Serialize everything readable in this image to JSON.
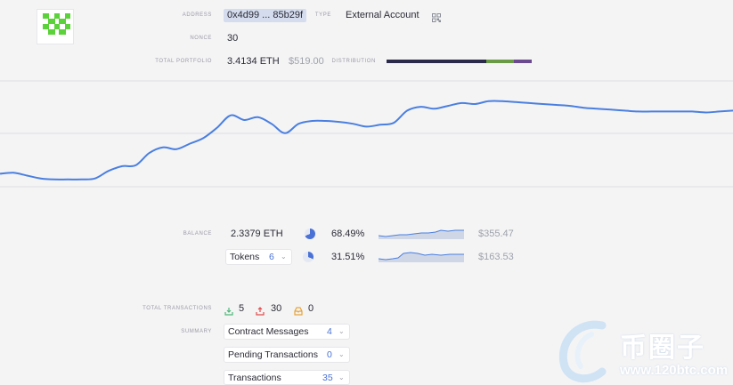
{
  "account": {
    "address_label": "ADDRESS",
    "address": "0x4d99 ... 85b29f",
    "type_label": "TYPE",
    "type": "External Account",
    "nonce_label": "NONCE",
    "nonce": "30",
    "portfolio_label": "TOTAL PORTFOLIO",
    "portfolio_eth": "3.4134 ETH",
    "portfolio_usd": "$519.00",
    "distribution_label": "DISTRIBUTION",
    "distribution": [
      {
        "share": 0.685,
        "color": "#2b2a4b"
      },
      {
        "share": 0.195,
        "color": "#6a9a45"
      },
      {
        "share": 0.12,
        "color": "#6b4a8f"
      }
    ]
  },
  "chart_data": {
    "type": "line",
    "x": [
      0,
      1,
      2,
      3,
      4,
      5,
      6,
      7,
      8,
      9,
      10,
      11,
      12,
      13,
      14,
      15,
      16,
      17,
      18,
      19,
      20,
      21,
      22,
      23,
      24,
      25,
      26,
      27,
      28,
      29,
      30,
      31,
      32,
      33,
      34,
      35,
      36,
      37,
      38,
      39,
      40,
      41,
      42,
      43,
      44,
      45,
      46,
      47,
      48,
      49,
      50,
      51,
      52,
      53,
      54
    ],
    "values": [
      10,
      11,
      8,
      5,
      4,
      4,
      4,
      5,
      13,
      18,
      19,
      32,
      38,
      36,
      42,
      48,
      59,
      72,
      67,
      70,
      63,
      53,
      63,
      66,
      66,
      65,
      63,
      60,
      62,
      64,
      77,
      81,
      79,
      82,
      85,
      84,
      87,
      87,
      86,
      85,
      84,
      83,
      82,
      80,
      79,
      78,
      77,
      76,
      76,
      76,
      76,
      76,
      75,
      76,
      77
    ],
    "color": "#4a7fe0",
    "grid": true
  },
  "balance": {
    "label": "BALANCE",
    "eth": "2.3379 ETH",
    "eth_pct": "68.49%",
    "eth_usd": "$355.47",
    "eth_share": 0.6849,
    "tokens_label": "Tokens",
    "tokens_count": "6",
    "tokens_pct": "31.51%",
    "tokens_usd": "$163.53",
    "tokens_share": 0.3151
  },
  "transactions": {
    "label": "TOTAL TRANSACTIONS",
    "in_count": "5",
    "out_count": "30",
    "pending_count": "0",
    "summary_label": "SUMMARY",
    "items": [
      {
        "label": "Contract Messages",
        "count": "4"
      },
      {
        "label": "Pending Transactions",
        "count": "0"
      },
      {
        "label": "Transactions",
        "count": "35"
      }
    ]
  },
  "watermark": {
    "brand": "币圈子",
    "url": "www.120btc.com"
  },
  "icons": {
    "avatar": "identicon",
    "qr": "qr-code-icon",
    "dropdown": "chevron-down-icon",
    "in": "download-icon",
    "out": "upload-icon",
    "pending": "inbox-icon"
  }
}
